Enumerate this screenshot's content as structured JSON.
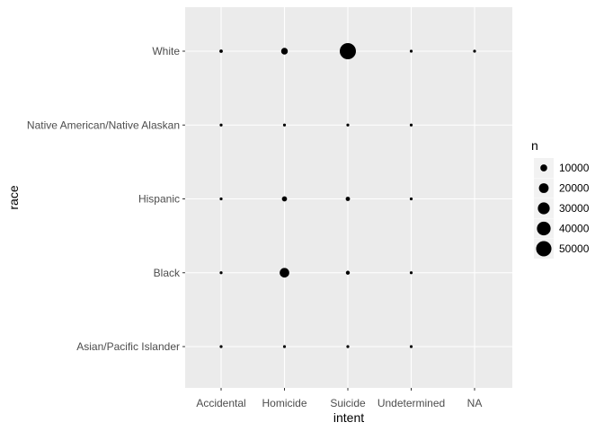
{
  "chart_data": {
    "type": "scatter",
    "xlabel": "intent",
    "ylabel": "race",
    "x_categories": [
      "Accidental",
      "Homicide",
      "Suicide",
      "Undetermined",
      "NA"
    ],
    "y_categories": [
      "Asian/Pacific Islander",
      "Black",
      "Hispanic",
      "Native American/Native Alaskan",
      "White"
    ],
    "size_variable": "n",
    "points": [
      {
        "intent": "Accidental",
        "race": "Asian/Pacific Islander",
        "n": 10
      },
      {
        "intent": "Homicide",
        "race": "Asian/Pacific Islander",
        "n": 600
      },
      {
        "intent": "Suicide",
        "race": "Asian/Pacific Islander",
        "n": 800
      },
      {
        "intent": "Undetermined",
        "race": "Asian/Pacific Islander",
        "n": 10
      },
      {
        "intent": "Accidental",
        "race": "Black",
        "n": 900
      },
      {
        "intent": "Homicide",
        "race": "Black",
        "n": 19500
      },
      {
        "intent": "Suicide",
        "race": "Black",
        "n": 3300
      },
      {
        "intent": "Undetermined",
        "race": "Black",
        "n": 300
      },
      {
        "intent": "Accidental",
        "race": "Hispanic",
        "n": 1200
      },
      {
        "intent": "Homicide",
        "race": "Hispanic",
        "n": 5600
      },
      {
        "intent": "Suicide",
        "race": "Hispanic",
        "n": 4000
      },
      {
        "intent": "Undetermined",
        "race": "Hispanic",
        "n": 400
      },
      {
        "intent": "Accidental",
        "race": "Native American/Native Alaskan",
        "n": 300
      },
      {
        "intent": "Homicide",
        "race": "Native American/Native Alaskan",
        "n": 500
      },
      {
        "intent": "Suicide",
        "race": "Native American/Native Alaskan",
        "n": 1500
      },
      {
        "intent": "Undetermined",
        "race": "Native American/Native Alaskan",
        "n": 100
      },
      {
        "intent": "Accidental",
        "race": "White",
        "n": 2500
      },
      {
        "intent": "Homicide",
        "race": "White",
        "n": 9500
      },
      {
        "intent": "Suicide",
        "race": "White",
        "n": 55500
      },
      {
        "intent": "Undetermined",
        "race": "White",
        "n": 800
      },
      {
        "intent": "NA",
        "race": "White",
        "n": 1
      }
    ],
    "legend": {
      "title": "n",
      "placement": "right",
      "values": [
        10000,
        20000,
        30000,
        40000,
        50000
      ],
      "labels": [
        "10000",
        "20000",
        "30000",
        "40000",
        "50000"
      ]
    },
    "grid": true,
    "colors": {
      "panel_background": "#ebebeb",
      "grid": "#ffffff",
      "points": "#000000"
    }
  }
}
